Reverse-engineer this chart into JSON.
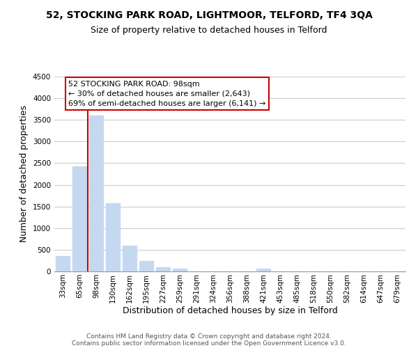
{
  "title": "52, STOCKING PARK ROAD, LIGHTMOOR, TELFORD, TF4 3QA",
  "subtitle": "Size of property relative to detached houses in Telford",
  "xlabel": "Distribution of detached houses by size in Telford",
  "ylabel": "Number of detached properties",
  "categories": [
    "33sqm",
    "65sqm",
    "98sqm",
    "130sqm",
    "162sqm",
    "195sqm",
    "227sqm",
    "259sqm",
    "291sqm",
    "324sqm",
    "356sqm",
    "388sqm",
    "421sqm",
    "453sqm",
    "485sqm",
    "518sqm",
    "550sqm",
    "582sqm",
    "614sqm",
    "647sqm",
    "679sqm"
  ],
  "values": [
    350,
    2430,
    3600,
    1580,
    600,
    240,
    100,
    60,
    0,
    0,
    0,
    0,
    60,
    0,
    0,
    0,
    0,
    0,
    0,
    0,
    0
  ],
  "bar_color": "#c5d8f0",
  "vline_index": 2,
  "vline_color": "#cc0000",
  "ylim": [
    0,
    4500
  ],
  "yticks": [
    0,
    500,
    1000,
    1500,
    2000,
    2500,
    3000,
    3500,
    4000,
    4500
  ],
  "annotation_title": "52 STOCKING PARK ROAD: 98sqm",
  "annotation_line1": "← 30% of detached houses are smaller (2,643)",
  "annotation_line2": "69% of semi-detached houses are larger (6,141) →",
  "annotation_box_color": "#ffffff",
  "annotation_box_edge": "#cc0000",
  "footer_line1": "Contains HM Land Registry data © Crown copyright and database right 2024.",
  "footer_line2": "Contains public sector information licensed under the Open Government Licence v3.0.",
  "background_color": "#ffffff",
  "grid_color": "#cccccc",
  "title_fontsize": 10,
  "subtitle_fontsize": 9,
  "axis_label_fontsize": 9,
  "tick_fontsize": 7.5,
  "footer_fontsize": 6.5
}
